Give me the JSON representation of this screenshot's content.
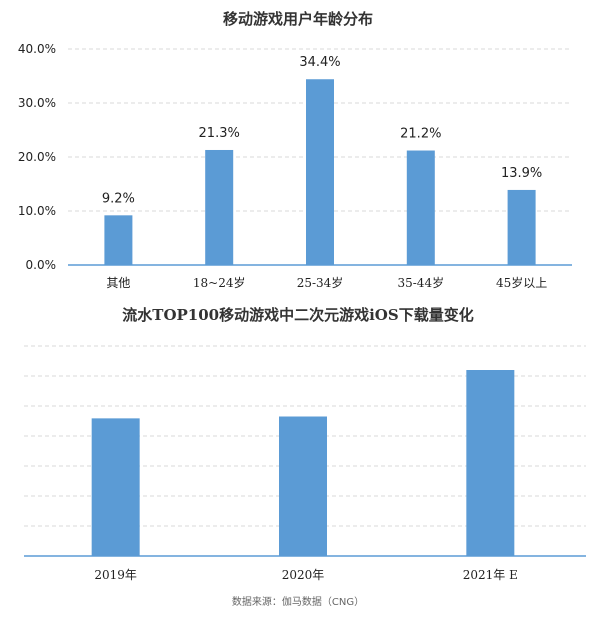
{
  "chart_data": [
    {
      "type": "bar",
      "title": "移动游戏用户年龄分布",
      "categories": [
        "其他",
        "18~24岁",
        "25-34岁",
        "35-44岁",
        "45岁以上"
      ],
      "values": [
        9.2,
        21.3,
        34.4,
        21.2,
        13.9
      ],
      "data_labels": [
        "9.2%",
        "21.3%",
        "34.4%",
        "21.2%",
        "13.9%"
      ],
      "yticks": [
        "0.0%",
        "10.0%",
        "20.0%",
        "30.0%",
        "40.0%"
      ],
      "ylim": [
        0,
        40
      ],
      "xlabel": "",
      "ylabel": "",
      "grid": true,
      "bar_color": "#5b9bd5"
    },
    {
      "type": "bar",
      "title": "流水TOP100移动游戏中二次元游戏iOS下载量变化",
      "categories": [
        "2019年",
        "2020年",
        "2021年 E"
      ],
      "relative_values": [
        0.74,
        0.75,
        1.0
      ],
      "grid": true,
      "yticks_shown": false,
      "bar_color": "#5b9bd5"
    }
  ],
  "source_note": "数据来源：伽马数据（CNG）"
}
